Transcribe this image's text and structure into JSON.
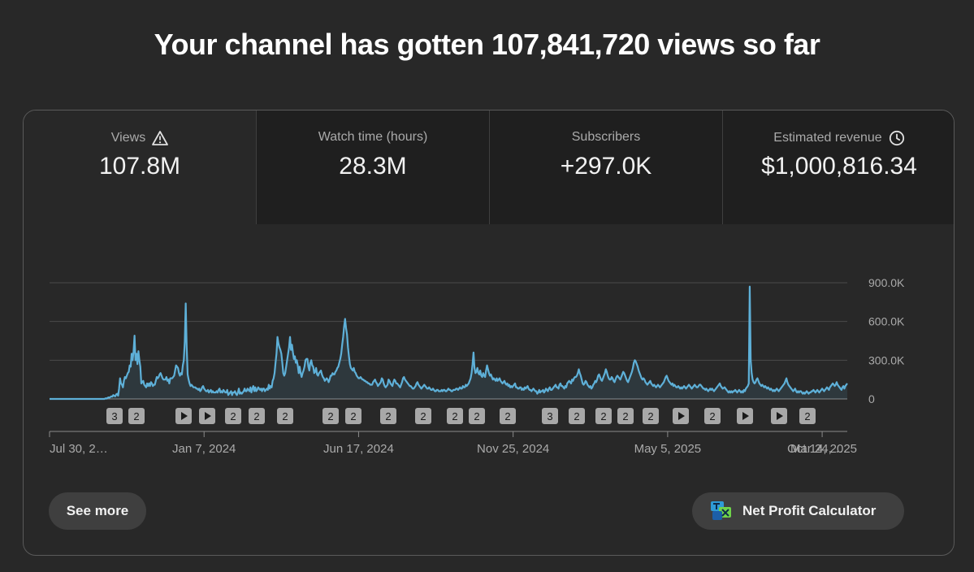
{
  "header": {
    "title": "Your channel has gotten 107,841,720 views so far"
  },
  "tabs": [
    {
      "label": "Views",
      "value": "107.8M",
      "icon": "warning-icon"
    },
    {
      "label": "Watch time (hours)",
      "value": "28.3M"
    },
    {
      "label": "Subscribers",
      "value": "+297.0K"
    },
    {
      "label": "Estimated revenue",
      "value": "$1,000,816.34",
      "icon": "clock-icon"
    }
  ],
  "chart_data": {
    "type": "area",
    "title": "Views",
    "xlabel": "",
    "ylabel": "",
    "ylim": [
      0,
      900000
    ],
    "y_ticks": [
      "900.0K",
      "600.0K",
      "300.0K",
      "0"
    ],
    "y_tick_values": [
      900000,
      600000,
      300000,
      0
    ],
    "x_tick_labels": [
      "Jul 30, 2…",
      "Jan 7, 2024",
      "Jun 17, 2024",
      "Nov 25, 2024",
      "May 5, 2025",
      "Oct 14, 2025",
      "Mar 24, …"
    ],
    "x_tick_index": [
      0,
      160,
      320,
      480,
      640,
      800,
      960
    ],
    "color": "#5eb0d8",
    "series": [
      {
        "name": "Views",
        "values": [
          0,
          0,
          0,
          0,
          0,
          0,
          0,
          0,
          0,
          0,
          0,
          0,
          0,
          0,
          0,
          0,
          0,
          0,
          0,
          0,
          0,
          0,
          0,
          0,
          0,
          0,
          0,
          0,
          0,
          0,
          0,
          0,
          0,
          0,
          0,
          0,
          0,
          0,
          0,
          0,
          0,
          0,
          0,
          0,
          0,
          0,
          0,
          0,
          0,
          0,
          0,
          0,
          0,
          0,
          0,
          0,
          0,
          0,
          5000,
          2000,
          8000,
          12000,
          10000,
          15000,
          20000,
          18000,
          30000,
          25000,
          20000,
          35000,
          40000,
          25000,
          80000,
          160000,
          120000,
          110000,
          90000,
          140000,
          170000,
          160000,
          180000,
          200000,
          210000,
          260000,
          250000,
          350000,
          300000,
          370000,
          490000,
          300000,
          350000,
          270000,
          370000,
          300000,
          250000,
          120000,
          130000,
          140000,
          110000,
          100000,
          90000,
          120000,
          100000,
          120000,
          100000,
          130000,
          120000,
          100000,
          110000,
          110000,
          140000,
          170000,
          160000,
          170000,
          190000,
          200000,
          180000,
          160000,
          150000,
          150000,
          150000,
          170000,
          140000,
          150000,
          120000,
          160000,
          160000,
          160000,
          170000,
          180000,
          220000,
          260000,
          250000,
          240000,
          200000,
          180000,
          200000,
          190000,
          260000,
          300000,
          440000,
          740000,
          400000,
          190000,
          150000,
          120000,
          100000,
          110000,
          100000,
          90000,
          90000,
          90000,
          80000,
          80000,
          70000,
          80000,
          60000,
          70000,
          90000,
          100000,
          80000,
          70000,
          60000,
          60000,
          70000,
          50000,
          60000,
          70000,
          50000,
          60000,
          50000,
          50000,
          50000,
          60000,
          50000,
          70000,
          80000,
          50000,
          60000,
          50000,
          70000,
          60000,
          50000,
          50000,
          70000,
          30000,
          40000,
          50000,
          60000,
          30000,
          50000,
          50000,
          60000,
          40000,
          30000,
          50000,
          80000,
          40000,
          50000,
          40000,
          50000,
          60000,
          80000,
          60000,
          60000,
          80000,
          70000,
          60000,
          90000,
          50000,
          80000,
          100000,
          60000,
          90000,
          60000,
          70000,
          90000,
          80000,
          70000,
          80000,
          60000,
          80000,
          80000,
          60000,
          70000,
          80000,
          70000,
          110000,
          80000,
          100000,
          90000,
          140000,
          160000,
          200000,
          280000,
          350000,
          480000,
          430000,
          400000,
          380000,
          350000,
          280000,
          200000,
          180000,
          200000,
          250000,
          300000,
          350000,
          400000,
          480000,
          380000,
          420000,
          360000,
          310000,
          330000,
          280000,
          300000,
          260000,
          200000,
          250000,
          200000,
          170000,
          200000,
          220000,
          250000,
          300000,
          310000,
          310000,
          250000,
          220000,
          280000,
          300000,
          260000,
          250000,
          200000,
          210000,
          240000,
          190000,
          180000,
          200000,
          210000,
          220000,
          190000,
          170000,
          160000,
          140000,
          150000,
          160000,
          150000,
          130000,
          150000,
          180000,
          180000,
          200000,
          190000,
          190000,
          210000,
          220000,
          240000,
          250000,
          280000,
          310000,
          350000,
          420000,
          480000,
          560000,
          620000,
          550000,
          500000,
          400000,
          330000,
          270000,
          240000,
          230000,
          220000,
          240000,
          210000,
          200000,
          180000,
          170000,
          160000,
          160000,
          170000,
          160000,
          150000,
          150000,
          140000,
          140000,
          130000,
          130000,
          120000,
          120000,
          110000,
          110000,
          110000,
          130000,
          140000,
          150000,
          130000,
          120000,
          100000,
          110000,
          120000,
          130000,
          160000,
          150000,
          120000,
          100000,
          90000,
          100000,
          110000,
          150000,
          140000,
          120000,
          110000,
          100000,
          130000,
          150000,
          140000,
          120000,
          120000,
          110000,
          100000,
          90000,
          110000,
          130000,
          160000,
          170000,
          150000,
          140000,
          130000,
          120000,
          110000,
          100000,
          100000,
          90000,
          80000,
          80000,
          90000,
          100000,
          120000,
          130000,
          110000,
          100000,
          90000,
          80000,
          90000,
          100000,
          110000,
          100000,
          90000,
          80000,
          80000,
          90000,
          80000,
          70000,
          70000,
          80000,
          70000,
          60000,
          60000,
          70000,
          70000,
          60000,
          60000,
          60000,
          70000,
          60000,
          70000,
          70000,
          60000,
          60000,
          70000,
          80000,
          70000,
          70000,
          60000,
          60000,
          70000,
          70000,
          70000,
          80000,
          80000,
          70000,
          80000,
          90000,
          80000,
          80000,
          100000,
          90000,
          90000,
          110000,
          100000,
          110000,
          120000,
          140000,
          160000,
          200000,
          270000,
          360000,
          240000,
          200000,
          210000,
          240000,
          200000,
          190000,
          220000,
          180000,
          170000,
          200000,
          180000,
          170000,
          220000,
          260000,
          230000,
          200000,
          180000,
          190000,
          170000,
          150000,
          160000,
          150000,
          140000,
          160000,
          140000,
          150000,
          160000,
          140000,
          130000,
          120000,
          130000,
          140000,
          120000,
          110000,
          120000,
          100000,
          110000,
          90000,
          100000,
          90000,
          100000,
          110000,
          120000,
          90000,
          90000,
          80000,
          80000,
          90000,
          90000,
          70000,
          80000,
          70000,
          90000,
          80000,
          90000,
          100000,
          80000,
          70000,
          70000,
          60000,
          70000,
          80000,
          70000,
          60000,
          60000,
          40000,
          50000,
          70000,
          50000,
          60000,
          60000,
          70000,
          50000,
          60000,
          80000,
          70000,
          60000,
          80000,
          90000,
          70000,
          70000,
          80000,
          90000,
          100000,
          110000,
          90000,
          90000,
          80000,
          110000,
          120000,
          100000,
          100000,
          90000,
          80000,
          100000,
          90000,
          120000,
          130000,
          140000,
          130000,
          120000,
          150000,
          140000,
          160000,
          170000,
          170000,
          180000,
          200000,
          230000,
          200000,
          180000,
          150000,
          120000,
          110000,
          120000,
          140000,
          130000,
          110000,
          100000,
          90000,
          100000,
          80000,
          90000,
          110000,
          120000,
          140000,
          130000,
          150000,
          180000,
          190000,
          170000,
          150000,
          140000,
          160000,
          180000,
          200000,
          230000,
          210000,
          180000,
          160000,
          150000,
          150000,
          170000,
          160000,
          140000,
          130000,
          150000,
          170000,
          180000,
          170000,
          160000,
          150000,
          170000,
          190000,
          210000,
          200000,
          180000,
          160000,
          140000,
          130000,
          150000,
          170000,
          190000,
          210000,
          240000,
          280000,
          300000,
          290000,
          270000,
          250000,
          220000,
          200000,
          180000,
          160000,
          150000,
          160000,
          150000,
          130000,
          120000,
          110000,
          120000,
          130000,
          140000,
          120000,
          110000,
          100000,
          110000,
          100000,
          90000,
          100000,
          110000,
          100000,
          90000,
          100000,
          110000,
          120000,
          130000,
          150000,
          170000,
          180000,
          160000,
          140000,
          130000,
          120000,
          110000,
          120000,
          100000,
          110000,
          100000,
          90000,
          90000,
          100000,
          90000,
          80000,
          90000,
          80000,
          90000,
          100000,
          90000,
          80000,
          90000,
          100000,
          110000,
          100000,
          90000,
          80000,
          90000,
          100000,
          110000,
          100000,
          90000,
          90000,
          100000,
          110000,
          110000,
          100000,
          90000,
          80000,
          80000,
          70000,
          80000,
          70000,
          60000,
          70000,
          80000,
          70000,
          80000,
          70000,
          60000,
          70000,
          80000,
          90000,
          100000,
          110000,
          120000,
          100000,
          90000,
          80000,
          85000,
          90000,
          80000,
          70000,
          60000,
          50000,
          60000,
          50000,
          60000,
          50000,
          60000,
          60000,
          70000,
          60000,
          50000,
          60000,
          70000,
          60000,
          50000,
          60000,
          50000,
          70000,
          60000,
          80000,
          90000,
          100000,
          120000,
          870000,
          300000,
          200000,
          150000,
          130000,
          120000,
          130000,
          150000,
          160000,
          140000,
          120000,
          110000,
          100000,
          110000,
          100000,
          90000,
          100000,
          90000,
          80000,
          90000,
          80000,
          70000,
          80000,
          70000,
          60000,
          70000,
          60000,
          70000,
          80000,
          70000,
          60000,
          70000,
          80000,
          90000,
          100000,
          110000,
          120000,
          140000,
          160000,
          130000,
          110000,
          100000,
          90000,
          80000,
          70000,
          60000,
          70000,
          80000,
          60000,
          50000,
          60000,
          50000,
          60000,
          60000,
          50000,
          40000,
          50000,
          40000,
          50000,
          60000,
          50000,
          40000,
          50000,
          50000,
          60000,
          60000,
          70000,
          60000,
          50000,
          60000,
          70000,
          60000,
          50000,
          60000,
          70000,
          80000,
          70000,
          60000,
          70000,
          80000,
          90000,
          80000,
          70000,
          90000,
          100000,
          110000,
          120000,
          110000,
          100000,
          110000,
          130000,
          110000,
          100000,
          90000,
          80000,
          70000,
          90000,
          100000,
          80000,
          100000,
          110000,
          120000
        ]
      }
    ],
    "markers": [
      "3",
      "2",
      "play",
      "play",
      "2",
      "2",
      "2",
      "2",
      "2",
      "2",
      "2",
      "2",
      "2",
      "2",
      "3",
      "2",
      "2",
      "2",
      "2",
      "play",
      "2",
      "play",
      "play",
      "2"
    ]
  },
  "buttons": {
    "see_more": "See more",
    "net_profit": "Net Profit Calculator"
  }
}
